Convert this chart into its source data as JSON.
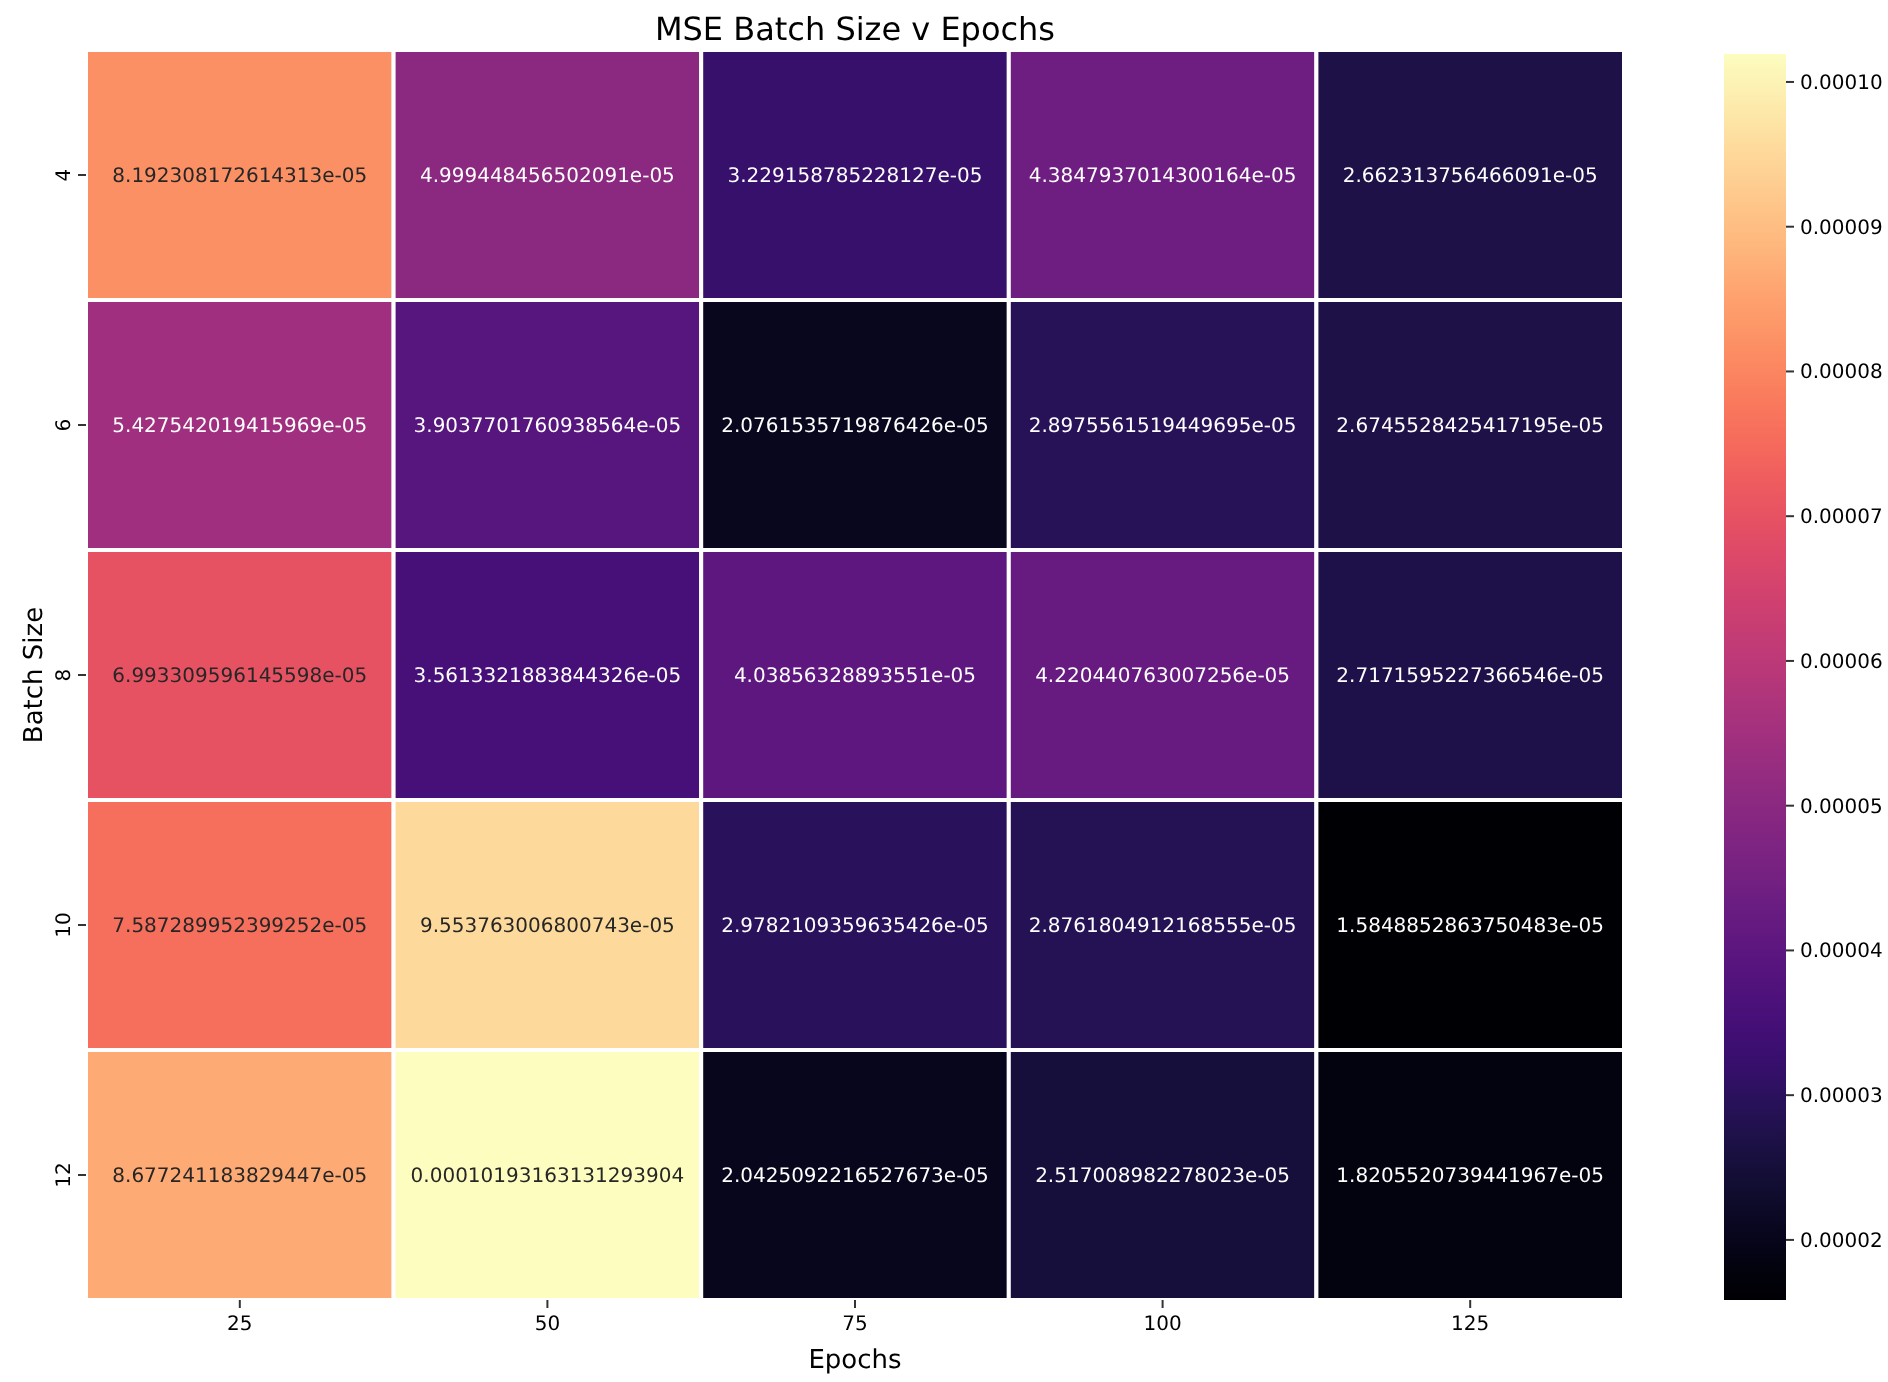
{
  "chart_data": {
    "type": "heatmap",
    "title": "MSE Batch Size v Epochs",
    "xlabel": "Epochs",
    "ylabel": "Batch Size",
    "categories": [
      "25",
      "50",
      "75",
      "100",
      "125"
    ],
    "y_categories": [
      "4",
      "6",
      "8",
      "10",
      "12"
    ],
    "cells": [
      [
        8.192308172614313e-05,
        4.999448456502091e-05,
        3.229158785228127e-05,
        4.3847937014300164e-05,
        2.662313756466091e-05
      ],
      [
        5.427542019415969e-05,
        3.9037701760938564e-05,
        2.0761535719876426e-05,
        2.8975561519449695e-05,
        2.6745528425417195e-05
      ],
      [
        6.993309596145598e-05,
        3.5613321883844326e-05,
        4.03856328893551e-05,
        4.220440763007256e-05,
        2.7171595227366546e-05
      ],
      [
        7.587289952399252e-05,
        9.553763006800743e-05,
        2.9782109359635426e-05,
        2.8761804912168555e-05,
        1.5848852863750483e-05
      ],
      [
        8.677241183829447e-05,
        0.00010193163131293904,
        2.0425092216527673e-05,
        2.517008982278023e-05,
        1.8205520739441967e-05
      ]
    ],
    "cell_labels": [
      [
        "8.192308172614313e-05",
        "4.999448456502091e-05",
        "3.229158785228127e-05",
        "4.3847937014300164e-05",
        "2.662313756466091e-05"
      ],
      [
        "5.427542019415969e-05",
        "3.9037701760938564e-05",
        "2.0761535719876426e-05",
        "2.8975561519449695e-05",
        "2.6745528425417195e-05"
      ],
      [
        "6.993309596145598e-05",
        "3.5613321883844326e-05",
        "4.03856328893551e-05",
        "4.220440763007256e-05",
        "2.7171595227366546e-05"
      ],
      [
        "7.587289952399252e-05",
        "9.553763006800743e-05",
        "2.9782109359635426e-05",
        "2.8761804912168555e-05",
        "1.5848852863750483e-05"
      ],
      [
        "8.677241183829447e-05",
        "0.00010193163131293904",
        "2.0425092216527673e-05",
        "2.517008982278023e-05",
        "1.8205520739441967e-05"
      ]
    ],
    "clim": [
      1.5848852863750483e-05,
      0.00010193163131293904
    ],
    "cticks": [
      {
        "value": 2e-05,
        "label": "0.00002"
      },
      {
        "value": 3e-05,
        "label": "0.00003"
      },
      {
        "value": 4e-05,
        "label": "0.00004"
      },
      {
        "value": 5e-05,
        "label": "0.00005"
      },
      {
        "value": 6e-05,
        "label": "0.00006"
      },
      {
        "value": 7e-05,
        "label": "0.00007"
      },
      {
        "value": 8e-05,
        "label": "0.00008"
      },
      {
        "value": 9e-05,
        "label": "0.00009"
      },
      {
        "value": 0.0001,
        "label": "0.00010"
      }
    ]
  }
}
